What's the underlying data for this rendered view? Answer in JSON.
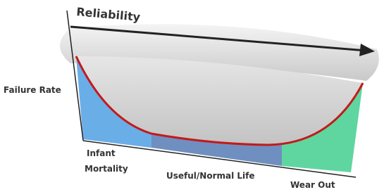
{
  "diagram": {
    "arrow_label": "Reliability",
    "vertical_label": "Failure Rate",
    "phases": [
      {
        "lines": [
          "Infant",
          "Mortality"
        ]
      },
      {
        "lines": [
          "Useful/Normal Life"
        ]
      },
      {
        "lines": [
          "Wear Out"
        ]
      }
    ]
  }
}
